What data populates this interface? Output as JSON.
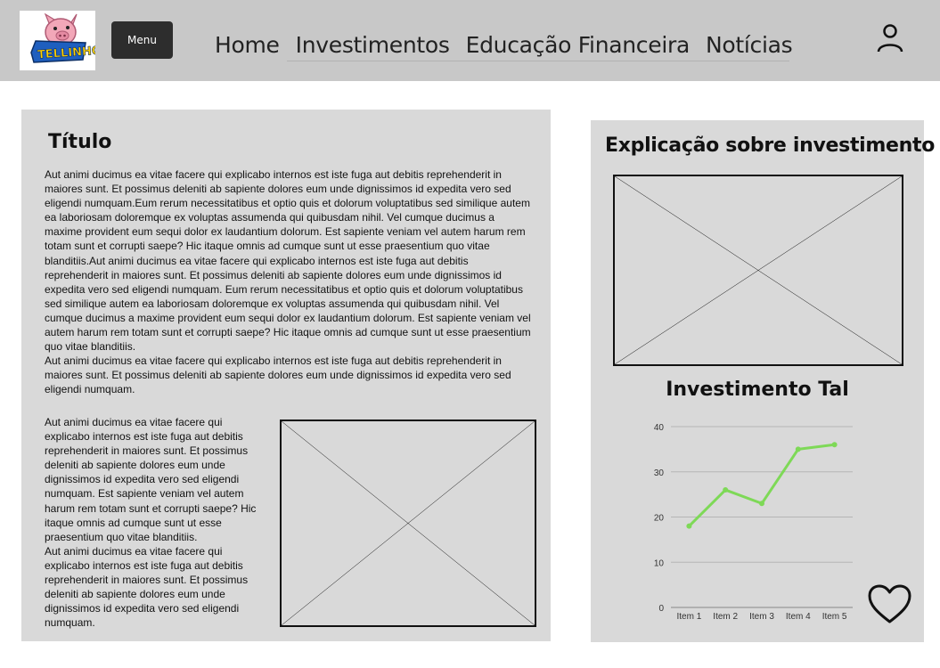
{
  "header": {
    "logo_text": "TELLINHO",
    "menu_label": "Menu",
    "nav": [
      "Home",
      "Investimentos",
      "Educação Financeira",
      "Notícias"
    ],
    "user_icon": "user-icon"
  },
  "main": {
    "title": "Título",
    "paragraphs": [
      "Aut animi ducimus ea vitae facere qui explicabo internos est iste fuga aut debitis reprehenderit in maiores sunt. Et possimus deleniti ab sapiente dolores eum unde dignissimos id expedita vero sed eligendi numquam.Eum rerum necessitatibus et optio quis et dolorum voluptatibus sed similique autem ea laboriosam doloremque ex voluptas assumenda qui quibusdam nihil. Vel cumque ducimus a maxime provident eum sequi dolor ex laudantium dolorum. Est sapiente veniam vel autem harum rem totam sunt et corrupti saepe? Hic itaque omnis ad cumque sunt ut esse praesentium quo vitae blanditiis.Aut animi ducimus ea vitae facere qui explicabo internos est iste fuga aut debitis reprehenderit in maiores sunt. Et possimus deleniti ab sapiente dolores eum unde dignissimos id expedita vero sed eligendi numquam. Eum rerum necessitatibus et optio quis et dolorum voluptatibus sed similique autem ea laboriosam doloremque ex voluptas assumenda qui quibusdam nihil. Vel cumque ducimus a maxime provident eum sequi dolor ex laudantium dolorum. Est sapiente veniam vel autem harum rem totam sunt et corrupti saepe? Hic itaque omnis ad cumque sunt ut esse praesentium quo vitae blanditiis.",
      "Aut animi ducimus ea vitae facere qui explicabo internos est iste fuga aut debitis reprehenderit in maiores sunt. Et possimus deleniti ab sapiente dolores eum unde dignissimos id expedita vero sed eligendi numquam."
    ],
    "side_paragraphs": [
      "Aut animi ducimus ea vitae facere qui explicabo internos est iste fuga aut debitis reprehenderit in maiores sunt. Et possimus deleniti ab sapiente dolores eum unde dignissimos id expedita vero sed eligendi numquam. Est sapiente veniam vel autem harum rem totam sunt et corrupti saepe? Hic itaque omnis ad cumque sunt ut esse praesentium quo vitae blanditiis.",
      "Aut animi ducimus ea vitae facere qui explicabo internos est iste fuga aut debitis reprehenderit in maiores sunt. Et possimus deleniti ab sapiente dolores eum unde dignissimos id expedita vero sed eligendi numquam."
    ]
  },
  "sidebar": {
    "title": "Explicação sobre investimento",
    "chart_title": "Investimento Tal",
    "favorite_icon": "heart-icon"
  },
  "colors": {
    "header_bg": "#c8c8c8",
    "panel_bg": "#d9d9d9",
    "menu_bg": "#2d2d2d",
    "line": "#7ed957"
  },
  "chart_data": {
    "type": "line",
    "title": "Investimento Tal",
    "categories": [
      "Item 1",
      "Item 2",
      "Item 3",
      "Item 4",
      "Item 5"
    ],
    "values": [
      18,
      26,
      23,
      35,
      36
    ],
    "yticks": [
      0,
      10,
      20,
      30,
      40
    ],
    "ylim": [
      0,
      40
    ],
    "grid": true,
    "xlabel": "",
    "ylabel": ""
  }
}
